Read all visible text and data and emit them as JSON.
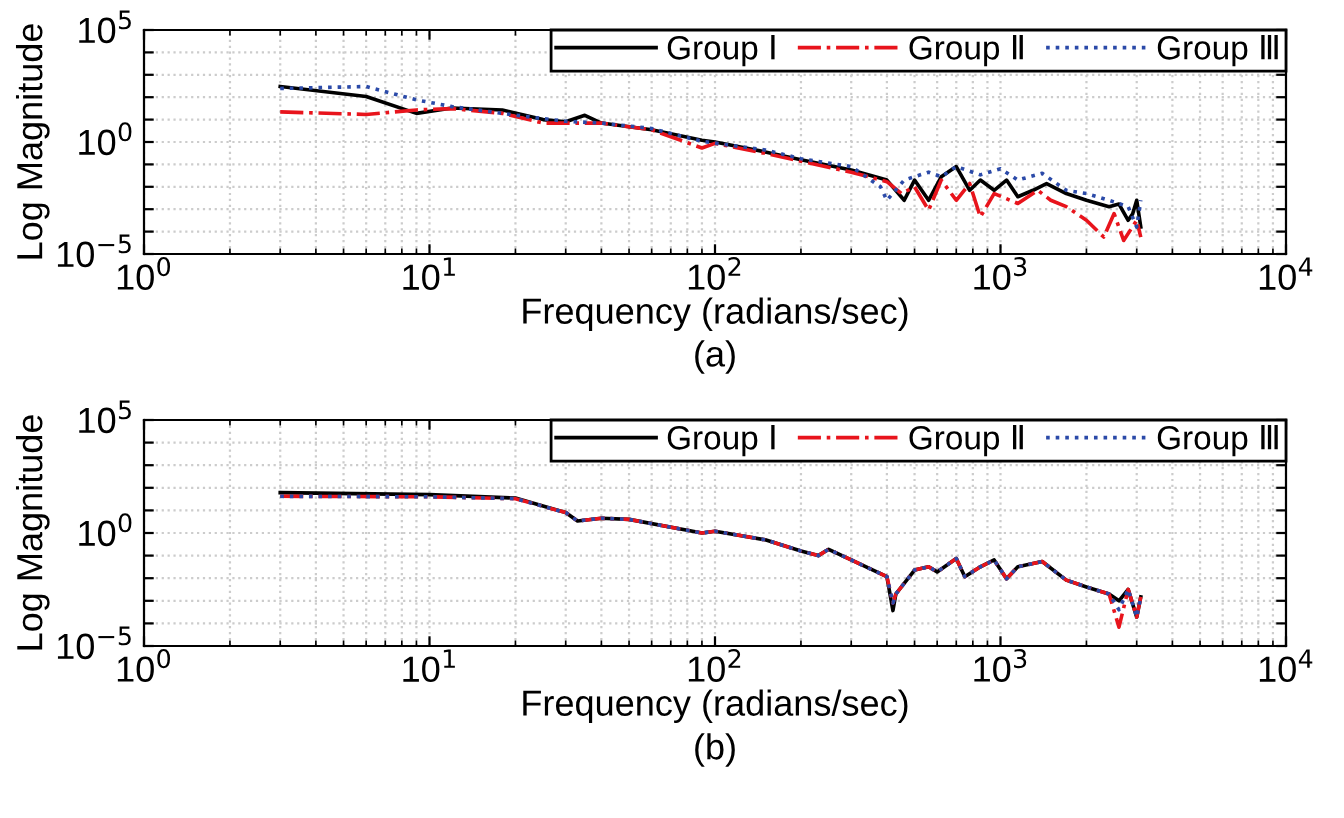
{
  "chart_data": [
    {
      "type": "line",
      "xlabel": "Frequency (radians/sec)",
      "ylabel": "Log Magnitude",
      "annotations": [
        "(a)"
      ],
      "log": "xy",
      "grid": true,
      "legend": "top right",
      "xlim": [
        1,
        10000
      ],
      "ylim": [
        1e-05,
        100000
      ],
      "xticks": [
        {
          "value": 1,
          "label": "10$^{0}$"
        },
        {
          "value": 10,
          "label": "10$^{1}$"
        },
        {
          "value": 100,
          "label": "10$^{2}$"
        },
        {
          "value": 1000,
          "label": "10$^{3}$"
        },
        {
          "value": 10000,
          "label": "10$^{4}$"
        }
      ],
      "yticks": [
        {
          "value": 1e-05,
          "label": "10$^{−5}$"
        },
        {
          "value": 0.0001,
          "label": null
        },
        {
          "value": 0.001,
          "label": null
        },
        {
          "value": 0.01,
          "label": null
        },
        {
          "value": 0.1,
          "label": null
        },
        {
          "value": 1,
          "label": "10$^{0}$"
        },
        {
          "value": 10,
          "label": null
        },
        {
          "value": 100,
          "label": null
        },
        {
          "value": 1000,
          "label": null
        },
        {
          "value": 10000,
          "label": null
        },
        {
          "value": 100000,
          "label": "10$^{5}$"
        }
      ],
      "series": [
        {
          "name": "Group Ⅰ",
          "color": "#000000",
          "line_style": "solid",
          "x": [
            3,
            6,
            9,
            12,
            18,
            25,
            30,
            35,
            40,
            60,
            90,
            100,
            150,
            200,
            300,
            400,
            460,
            500,
            560,
            620,
            700,
            780,
            850,
            950,
            1050,
            1150,
            1300,
            1450,
            1700,
            2000,
            2400,
            2600,
            2800,
            2900,
            3000,
            3100
          ],
          "values": [
            300,
            107,
            19,
            33,
            27,
            10,
            8,
            15.6,
            7,
            3.5,
            1.2,
            1,
            0.36,
            0.16,
            0.056,
            0.02,
            0.0025,
            0.02,
            0.0025,
            0.028,
            0.08,
            0.007,
            0.02,
            0.007,
            0.02,
            0.0036,
            0.007,
            0.014,
            0.005,
            0.0025,
            0.0013,
            0.0017,
            0.00032,
            0.0006,
            0.0025,
            0.00016
          ]
        },
        {
          "name": "Group Ⅱ",
          "color": "#e8141c",
          "line_style": "dashdot",
          "x": [
            3,
            6,
            9,
            12,
            18,
            25,
            40,
            60,
            90,
            100,
            150,
            200,
            300,
            400,
            450,
            500,
            560,
            620,
            700,
            780,
            850,
            950,
            1150,
            1350,
            1500,
            1700,
            2000,
            2300,
            2500,
            2700,
            3000,
            3100
          ],
          "values": [
            22,
            17,
            27,
            31,
            19,
            7,
            7,
            3.5,
            0.54,
            0.87,
            0.31,
            0.14,
            0.045,
            0.017,
            0.005,
            0.01,
            0.0009,
            0.02,
            0.0025,
            0.014,
            0.00045,
            0.005,
            0.0018,
            0.007,
            0.0025,
            0.0013,
            0.00032,
            5.7e-05,
            0.00064,
            4e-05,
            0.00032,
            5.7e-05
          ]
        },
        {
          "name": "Group Ⅲ",
          "color": "#2b4aa8",
          "line_style": "dotted",
          "x": [
            3,
            6,
            9,
            12,
            18,
            25,
            30,
            40,
            60,
            90,
            150,
            200,
            300,
            380,
            400,
            460,
            560,
            620,
            700,
            850,
            1000,
            1150,
            1400,
            1700,
            2000,
            2400,
            2800,
            3000,
            3100
          ],
          "values": [
            245,
            300,
            76,
            38,
            19,
            11,
            8.4,
            7,
            4,
            1.07,
            0.44,
            0.18,
            0.08,
            0.01,
            0.0025,
            0.02,
            0.045,
            0.028,
            0.08,
            0.034,
            0.064,
            0.02,
            0.04,
            0.007,
            0.005,
            0.0025,
            0.0013,
            0.00016,
            0.0025
          ]
        }
      ]
    },
    {
      "type": "line",
      "xlabel": "Frequency (radians/sec)",
      "ylabel": "Log Magnitude",
      "annotations": [
        "(b)"
      ],
      "log": "xy",
      "grid": true,
      "legend": "top right",
      "xlim": [
        1,
        10000
      ],
      "ylim": [
        1e-05,
        100000
      ],
      "xticks": [
        {
          "value": 1,
          "label": "10$^{0}$"
        },
        {
          "value": 10,
          "label": "10$^{1}$"
        },
        {
          "value": 100,
          "label": "10$^{2}$"
        },
        {
          "value": 1000,
          "label": "10$^{3}$"
        },
        {
          "value": 10000,
          "label": "10$^{4}$"
        }
      ],
      "yticks": [
        {
          "value": 1e-05,
          "label": "10$^{−5}$"
        },
        {
          "value": 0.0001,
          "label": null
        },
        {
          "value": 0.001,
          "label": null
        },
        {
          "value": 0.01,
          "label": null
        },
        {
          "value": 0.1,
          "label": null
        },
        {
          "value": 1,
          "label": "10$^{0}$"
        },
        {
          "value": 10,
          "label": null
        },
        {
          "value": 100,
          "label": null
        },
        {
          "value": 1000,
          "label": null
        },
        {
          "value": 10000,
          "label": null
        },
        {
          "value": 100000,
          "label": "10$^{5}$"
        }
      ],
      "series": [
        {
          "name": "Group Ⅰ",
          "color": "#000000",
          "line_style": "solid",
          "x": [
            3,
            10,
            20,
            30,
            33,
            40,
            50,
            90,
            100,
            150,
            200,
            230,
            250,
            300,
            400,
            420,
            430,
            500,
            560,
            600,
            700,
            750,
            850,
            950,
            1050,
            1150,
            1400,
            1700,
            2000,
            2400,
            2600,
            2800,
            3000,
            3100
          ],
          "values": [
            61,
            50,
            35,
            8,
            3.4,
            4.5,
            4,
            1,
            1.2,
            0.5,
            0.16,
            0.1,
            0.19,
            0.064,
            0.0117,
            0.00037,
            0.002,
            0.023,
            0.032,
            0.019,
            0.074,
            0.0117,
            0.032,
            0.064,
            0.0094,
            0.032,
            0.055,
            0.0082,
            0.0041,
            0.002,
            0.001,
            0.0032,
            0.00019,
            0.0015
          ]
        },
        {
          "name": "Group Ⅱ",
          "color": "#e8141c",
          "line_style": "dashdot",
          "x": [
            3,
            10,
            20,
            30,
            33,
            40,
            50,
            90,
            100,
            150,
            200,
            230,
            250,
            300,
            400,
            420,
            430,
            500,
            560,
            600,
            700,
            750,
            850,
            950,
            1050,
            1150,
            1400,
            1700,
            2000,
            2400,
            2600,
            2800,
            3000,
            3100
          ],
          "values": [
            42,
            40,
            33,
            8,
            3.4,
            4.5,
            4,
            1,
            1.2,
            0.5,
            0.16,
            0.1,
            0.19,
            0.064,
            0.0117,
            0.0008,
            0.002,
            0.023,
            0.032,
            0.019,
            0.074,
            0.0117,
            0.032,
            0.064,
            0.0094,
            0.032,
            0.055,
            0.0082,
            0.0041,
            0.002,
            6.8e-05,
            0.0032,
            0.00019,
            0.0015
          ]
        },
        {
          "name": "Group Ⅲ",
          "color": "#2b4aa8",
          "line_style": "dotted",
          "x": [
            3,
            10,
            20,
            30,
            33,
            40,
            50,
            90,
            100,
            150,
            200,
            230,
            250,
            300,
            400,
            420,
            430,
            500,
            560,
            600,
            700,
            750,
            850,
            950,
            1050,
            1150,
            1400,
            1700,
            2000,
            2400,
            2600,
            2800,
            3000,
            3100
          ],
          "values": [
            42,
            40,
            33,
            8,
            3.4,
            4.5,
            4,
            1,
            1.2,
            0.5,
            0.16,
            0.1,
            0.19,
            0.064,
            0.0117,
            0.0008,
            0.002,
            0.023,
            0.032,
            0.019,
            0.074,
            0.0117,
            0.032,
            0.064,
            0.0094,
            0.032,
            0.055,
            0.0082,
            0.0041,
            0.002,
            0.0004,
            0.0032,
            0.00019,
            0.0015
          ]
        }
      ]
    }
  ]
}
